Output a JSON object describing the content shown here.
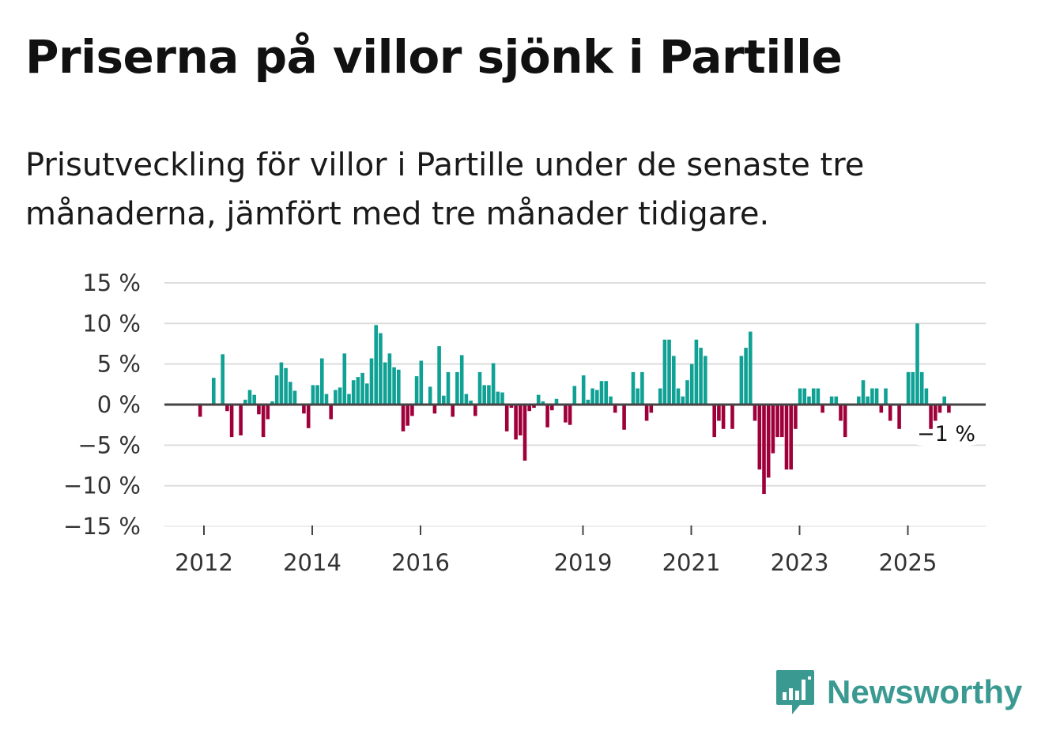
{
  "title": "Priserna på villor sjönk i Partille",
  "subtitle": "Prisutveckling för villor i Partille under de senaste tre månaderna, jämfört med tre månader tidigare.",
  "brand": "Newsworthy",
  "colors": {
    "positive": "#10a195",
    "negative": "#a0003a",
    "grid": "#dddddd",
    "zero": "#444444"
  },
  "chart_data": {
    "type": "bar",
    "ylim": [
      -15,
      15
    ],
    "yticks": [
      15,
      10,
      5,
      0,
      -5,
      -10,
      -15
    ],
    "ytick_labels": [
      "15 %",
      "10 %",
      "5 %",
      "0 %",
      "−5 %",
      "−10 %",
      "−15 %"
    ],
    "xticks": [
      2012,
      2014,
      2016,
      2019,
      2021,
      2023,
      2025
    ],
    "xtick_labels": [
      "2012",
      "2014",
      "2016",
      "2019",
      "2021",
      "2023",
      "2025"
    ],
    "annotation": "−1 %",
    "start": 2011.93,
    "step": 0.0833,
    "values": [
      -1.5,
      0,
      0,
      3.3,
      0,
      6.2,
      -0.8,
      -4,
      0,
      -3.8,
      0.6,
      1.8,
      1.2,
      -1.2,
      -4,
      -1.8,
      0.4,
      3.6,
      5.2,
      4.5,
      2.8,
      1.7,
      0,
      -1.1,
      -2.9,
      2.4,
      2.4,
      5.7,
      1.3,
      -1.8,
      1.8,
      2.1,
      6.3,
      1.3,
      3,
      3.4,
      3.9,
      2.6,
      5.7,
      9.8,
      8.8,
      5.2,
      6.3,
      4.6,
      4.3,
      -3.3,
      -2.6,
      -1.4,
      3.5,
      5.4,
      0,
      2.2,
      -1.1,
      7.2,
      1.1,
      4,
      -1.5,
      4,
      6.1,
      1.3,
      0.5,
      -1.4,
      4,
      2.4,
      2.4,
      5.1,
      1.6,
      1.5,
      -3.3,
      -0.4,
      -4.3,
      -3.8,
      -6.9,
      -0.8,
      -0.4,
      1.2,
      0.4,
      -2.8,
      -0.7,
      0.7,
      0,
      -2.2,
      -2.5,
      2.3,
      0,
      3.6,
      0.6,
      2,
      1.8,
      2.9,
      2.9,
      1,
      -1,
      0,
      -3.1,
      0,
      4,
      2,
      4,
      -2,
      -1,
      0,
      2,
      8,
      8,
      6,
      2,
      1,
      3,
      5,
      8,
      7,
      6,
      0,
      -4,
      -2,
      -3,
      0,
      -3,
      0,
      6,
      7,
      9,
      -2,
      -8,
      -11,
      -9,
      -6,
      -4,
      -4,
      -8,
      -8,
      -3,
      2,
      2,
      1,
      2,
      2,
      -1,
      0,
      1,
      1,
      -2,
      -4,
      0,
      0,
      1,
      3,
      1,
      2,
      2,
      -1,
      2,
      -2,
      0,
      -3,
      0,
      4,
      4,
      10,
      4,
      2,
      -3,
      -2,
      -1,
      1,
      -1
    ]
  }
}
